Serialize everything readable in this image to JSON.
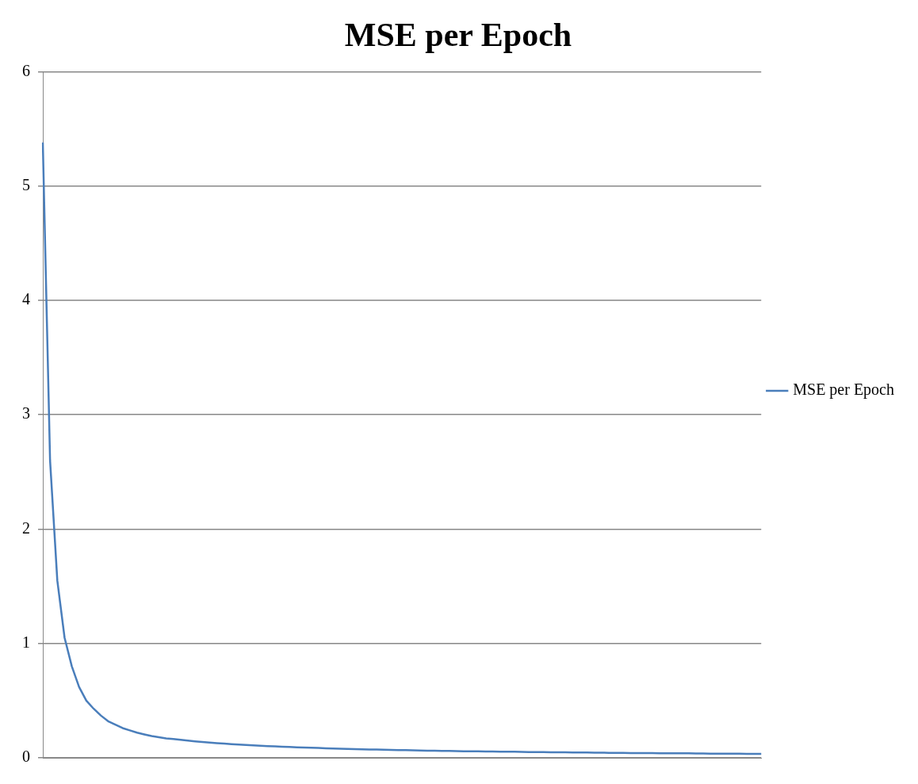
{
  "chart_data": {
    "type": "line",
    "title": "MSE per Epoch",
    "categories": [
      null,
      null,
      null,
      null,
      null,
      null,
      null,
      null,
      null,
      null,
      null,
      null,
      null,
      null,
      null,
      null,
      null,
      null,
      null,
      null,
      null,
      null,
      null,
      null,
      null,
      null,
      null,
      null,
      null,
      null,
      null,
      null,
      null,
      null,
      null,
      null,
      null,
      null,
      null,
      null,
      null,
      null,
      null,
      null,
      null,
      null,
      null,
      null,
      null,
      null,
      null,
      null,
      null,
      null,
      null,
      null,
      null,
      null,
      null,
      null,
      null,
      null,
      null,
      null,
      null,
      null,
      null,
      null,
      null,
      null,
      null,
      null,
      null,
      null,
      null,
      null,
      null,
      null,
      null,
      null,
      null,
      null,
      null,
      null,
      null,
      null,
      null,
      null,
      null,
      null,
      null,
      null,
      null,
      null,
      null,
      null,
      null,
      null,
      null,
      null
    ],
    "series": [
      {
        "name": "MSE per Epoch",
        "color": "#4a7ebb",
        "values": [
          5.38,
          2.6,
          1.55,
          1.05,
          0.8,
          0.62,
          0.5,
          0.43,
          0.37,
          0.32,
          0.29,
          0.26,
          0.24,
          0.22,
          0.205,
          0.19,
          0.18,
          0.17,
          0.165,
          0.157,
          0.15,
          0.144,
          0.138,
          0.133,
          0.128,
          0.124,
          0.12,
          0.116,
          0.112,
          0.109,
          0.106,
          0.103,
          0.1,
          0.097,
          0.095,
          0.092,
          0.09,
          0.088,
          0.086,
          0.084,
          0.082,
          0.08,
          0.078,
          0.077,
          0.075,
          0.073,
          0.072,
          0.071,
          0.069,
          0.068,
          0.067,
          0.066,
          0.064,
          0.063,
          0.062,
          0.061,
          0.06,
          0.059,
          0.058,
          0.058,
          0.057,
          0.056,
          0.055,
          0.054,
          0.053,
          0.053,
          0.052,
          0.051,
          0.05,
          0.05,
          0.049,
          0.048,
          0.048,
          0.047,
          0.046,
          0.046,
          0.045,
          0.045,
          0.044,
          0.043,
          0.043,
          0.042,
          0.042,
          0.041,
          0.041,
          0.04,
          0.04,
          0.039,
          0.039,
          0.039,
          0.038,
          0.038,
          0.037,
          0.037,
          0.037,
          0.036,
          0.036,
          0.035,
          0.035,
          0.035
        ]
      }
    ],
    "ylim": [
      0,
      6
    ],
    "yticks": [
      0,
      1,
      2,
      3,
      4,
      5,
      6
    ],
    "grid": "y",
    "legend": "right",
    "marker": "none",
    "line_style": "solid",
    "tick_labels": "y"
  }
}
